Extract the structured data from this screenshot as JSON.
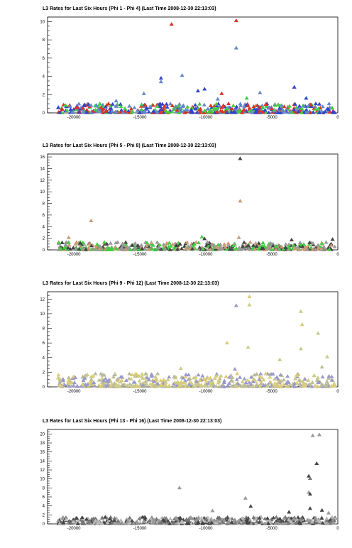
{
  "chart_data": [
    {
      "type": "scatter",
      "title": "L3 Rates for Last Six Hours (Phi 1 - Phi 4) (Last Time 2008-12-30 22:13:03)",
      "xlim": [
        -22000,
        0
      ],
      "ylim": [
        0,
        10.5
      ],
      "xticks": [
        -20000,
        -15000,
        -10000,
        -5000,
        0
      ],
      "yticks": [
        0,
        2,
        4,
        6,
        8,
        10
      ],
      "marker": "triangle",
      "colors": [
        "#3344cc",
        "#6688cc",
        "#44cc44",
        "#dd3322"
      ],
      "baseline": {
        "max": 1.0
      },
      "outliers": [
        {
          "x": -12600,
          "y": 9.7,
          "c": 3
        },
        {
          "x": -7700,
          "y": 10.1,
          "c": 3
        },
        {
          "x": -7700,
          "y": 7.1,
          "c": 1
        },
        {
          "x": -11800,
          "y": 4.1,
          "c": 1
        },
        {
          "x": -13400,
          "y": 3.8,
          "c": 0
        },
        {
          "x": -13400,
          "y": 3.4,
          "c": 1
        },
        {
          "x": -10100,
          "y": 2.6,
          "c": 0
        },
        {
          "x": -10600,
          "y": 2.4,
          "c": 0
        },
        {
          "x": -8800,
          "y": 2.1,
          "c": 3
        },
        {
          "x": -14700,
          "y": 2.1,
          "c": 1
        },
        {
          "x": -5900,
          "y": 2.2,
          "c": 1
        },
        {
          "x": -3300,
          "y": 2.8,
          "c": 0
        },
        {
          "x": -2400,
          "y": 1.6,
          "c": 0
        },
        {
          "x": -9100,
          "y": 1.5,
          "c": 1
        },
        {
          "x": -6900,
          "y": 1.6,
          "c": 2
        },
        {
          "x": -16800,
          "y": 1.3,
          "c": 1
        }
      ]
    },
    {
      "type": "scatter",
      "title": "L3 Rates for Last Six Hours (Phi 5 - Phi 8) (Last Time 2008-12-30 22:13:03)",
      "xlim": [
        -22000,
        0
      ],
      "ylim": [
        0,
        16.5
      ],
      "xticks": [
        -20000,
        -15000,
        -10000,
        -5000,
        0
      ],
      "yticks": [
        0,
        2,
        4,
        6,
        8,
        10,
        12,
        14,
        16
      ],
      "marker": "triangle",
      "colors": [
        "#444444",
        "#cc9977",
        "#44cc44",
        "#999999"
      ],
      "baseline": {
        "max": 1.3
      },
      "outliers": [
        {
          "x": -7400,
          "y": 15.7,
          "c": 0
        },
        {
          "x": -7400,
          "y": 8.4,
          "c": 1
        },
        {
          "x": -18700,
          "y": 5.0,
          "c": 1
        },
        {
          "x": -10300,
          "y": 2.2,
          "c": 2
        },
        {
          "x": -10100,
          "y": 1.9,
          "c": 0
        },
        {
          "x": -20400,
          "y": 2.1,
          "c": 1
        },
        {
          "x": -7500,
          "y": 2.1,
          "c": 1
        },
        {
          "x": -400,
          "y": 1.8,
          "c": 0
        },
        {
          "x": -3500,
          "y": 1.7,
          "c": 0
        }
      ]
    },
    {
      "type": "scatter",
      "title": "L3 Rates for Last Six Hours (Phi 9 - Phi 12) (Last Time 2008-12-30 22:13:03)",
      "xlim": [
        -22000,
        0
      ],
      "ylim": [
        0,
        13
      ],
      "xticks": [
        -20000,
        -15000,
        -10000,
        -5000,
        0
      ],
      "yticks": [
        0,
        2,
        4,
        6,
        8,
        10,
        12
      ],
      "marker": "triangle",
      "colors": [
        "#cccc88",
        "#9999cc",
        "#bbbb99",
        "#ddcc77"
      ],
      "baseline": {
        "max": 1.8
      },
      "outliers": [
        {
          "x": -6700,
          "y": 12.3,
          "c": 3
        },
        {
          "x": -6700,
          "y": 11.2,
          "c": 0
        },
        {
          "x": -7700,
          "y": 11.1,
          "c": 1
        },
        {
          "x": -2800,
          "y": 10.3,
          "c": 0
        },
        {
          "x": -2700,
          "y": 8.5,
          "c": 3
        },
        {
          "x": -1500,
          "y": 7.3,
          "c": 0
        },
        {
          "x": -8400,
          "y": 6.0,
          "c": 3
        },
        {
          "x": -2800,
          "y": 5.2,
          "c": 0
        },
        {
          "x": -6800,
          "y": 5.4,
          "c": 0
        },
        {
          "x": -800,
          "y": 4.1,
          "c": 0
        },
        {
          "x": -4400,
          "y": 3.7,
          "c": 0
        },
        {
          "x": -11900,
          "y": 2.5,
          "c": 0
        },
        {
          "x": -7800,
          "y": 2.4,
          "c": 1
        },
        {
          "x": -1200,
          "y": 2.7,
          "c": 2
        }
      ]
    },
    {
      "type": "scatter",
      "title": "L3 Rates for Last Six Hours (Phi 13 - Phi 16) (Last Time 2008-12-30 22:13:03)",
      "xlim": [
        -22000,
        0
      ],
      "ylim": [
        0,
        21
      ],
      "xticks": [
        -20000,
        -15000,
        -10000,
        -5000,
        0
      ],
      "yticks": [
        0,
        2,
        4,
        6,
        8,
        10,
        12,
        14,
        16,
        18,
        20
      ],
      "marker": "triangle",
      "colors": [
        "#999999",
        "#444444",
        "#777777",
        "#bbbbbb"
      ],
      "baseline": {
        "max": 1.5
      },
      "outliers": [
        {
          "x": -1400,
          "y": 19.8,
          "c": 0
        },
        {
          "x": -1900,
          "y": 19.6,
          "c": 0
        },
        {
          "x": -1600,
          "y": 13.4,
          "c": 1
        },
        {
          "x": -2200,
          "y": 10.6,
          "c": 1
        },
        {
          "x": -2100,
          "y": 10.1,
          "c": 2
        },
        {
          "x": -12000,
          "y": 8.0,
          "c": 0
        },
        {
          "x": -2200,
          "y": 7.0,
          "c": 0
        },
        {
          "x": -2100,
          "y": 6.6,
          "c": 1
        },
        {
          "x": -7000,
          "y": 5.7,
          "c": 0
        },
        {
          "x": -2100,
          "y": 3.4,
          "c": 1
        },
        {
          "x": -6600,
          "y": 3.9,
          "c": 1
        },
        {
          "x": -9500,
          "y": 2.9,
          "c": 0
        },
        {
          "x": -3700,
          "y": 2.6,
          "c": 1
        },
        {
          "x": -1200,
          "y": 3.0,
          "c": 1
        },
        {
          "x": -700,
          "y": 2.4,
          "c": 0
        }
      ]
    }
  ]
}
